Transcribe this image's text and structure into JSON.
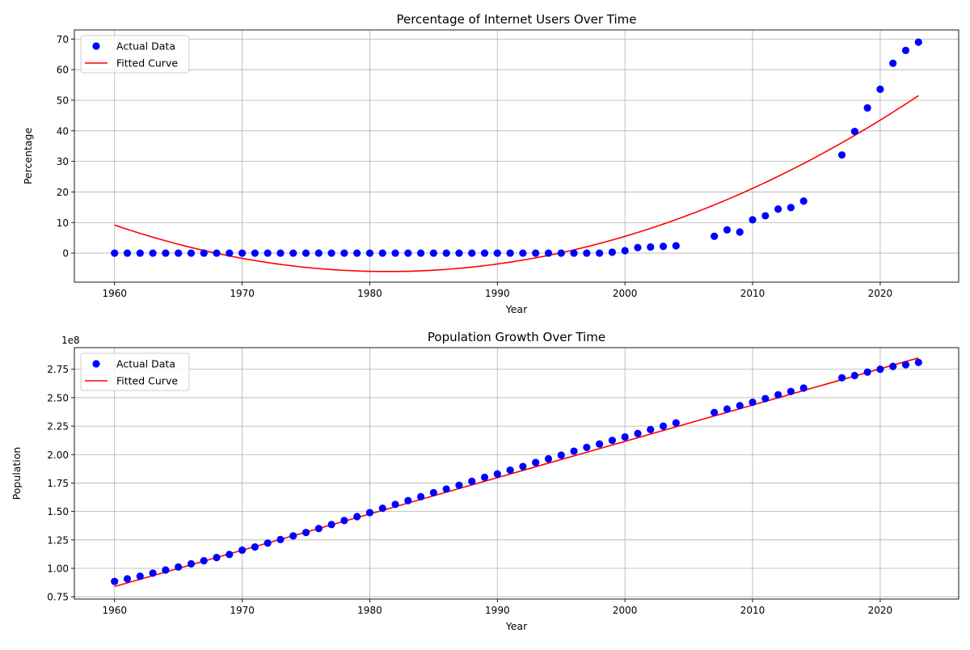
{
  "chart_data": [
    {
      "type": "scatter",
      "title": "Percentage of Internet Users Over Time",
      "xlabel": "Year",
      "ylabel": "Percentage",
      "xlim": [
        1956.85,
        2026.15
      ],
      "ylim": [
        -9.5,
        73
      ],
      "xticks": [
        1960,
        1970,
        1980,
        1990,
        2000,
        2010,
        2020
      ],
      "yticks": [
        0,
        10,
        20,
        30,
        40,
        50,
        60,
        70
      ],
      "grid": true,
      "legend_position": "top-left",
      "series": [
        {
          "name": "Actual Data",
          "kind": "scatter",
          "color": "#0000ff",
          "x": [
            1960,
            1961,
            1962,
            1963,
            1964,
            1965,
            1966,
            1967,
            1968,
            1969,
            1970,
            1971,
            1972,
            1973,
            1974,
            1975,
            1976,
            1977,
            1978,
            1979,
            1980,
            1981,
            1982,
            1983,
            1984,
            1985,
            1986,
            1987,
            1988,
            1989,
            1990,
            1991,
            1992,
            1993,
            1994,
            1995,
            1996,
            1997,
            1998,
            1999,
            2000,
            2001,
            2002,
            2003,
            2004,
            2007,
            2008,
            2009,
            2010,
            2011,
            2012,
            2013,
            2014,
            2017,
            2018,
            2019,
            2020,
            2021,
            2022,
            2023
          ],
          "y": [
            0,
            0,
            0,
            0,
            0,
            0,
            0,
            0,
            0,
            0,
            0,
            0,
            0,
            0,
            0,
            0,
            0,
            0,
            0,
            0,
            0,
            0,
            0,
            0,
            0,
            0,
            0,
            0,
            0,
            0,
            0,
            0,
            0,
            0,
            0,
            0,
            0,
            0,
            0,
            0.3,
            0.8,
            1.8,
            2.0,
            2.2,
            2.4,
            5.5,
            7.6,
            6.9,
            10.9,
            12.2,
            14.4,
            14.9,
            17.0,
            32.1,
            39.8,
            47.5,
            53.6,
            62.1,
            66.3,
            69.0
          ]
        },
        {
          "name": "Fitted Curve",
          "kind": "line",
          "color": "#ff0000",
          "fit": "quadratic",
          "x": [
            1960,
            1965,
            1970,
            1975,
            1980,
            1981.5,
            1985,
            1990,
            1995,
            2000,
            2005,
            2010,
            2015,
            2020,
            2023
          ],
          "y": [
            9.6,
            2.6,
            -2.1,
            -4.9,
            -5.9,
            -5.95,
            -5.3,
            -3.4,
            0.3,
            5.5,
            12.5,
            21.1,
            31.0,
            43.5,
            51.8
          ]
        }
      ]
    },
    {
      "type": "scatter",
      "title": "Population Growth Over Time",
      "xlabel": "Year",
      "ylabel": "Population",
      "offset_text": "1e8",
      "xlim": [
        1956.85,
        2026.15
      ],
      "ylim": [
        0.73,
        2.94
      ],
      "y_units_scale": 100000000,
      "xticks": [
        1960,
        1970,
        1980,
        1990,
        2000,
        2010,
        2020
      ],
      "yticks": [
        0.75,
        1.0,
        1.25,
        1.5,
        1.75,
        2.0,
        2.25,
        2.5,
        2.75
      ],
      "ytick_labels": [
        "0.75",
        "1.00",
        "1.25",
        "1.50",
        "1.75",
        "2.00",
        "2.25",
        "2.50",
        "2.75"
      ],
      "grid": true,
      "legend_position": "top-left",
      "series": [
        {
          "name": "Actual Data",
          "kind": "scatter",
          "color": "#0000ff",
          "x": [
            1960,
            1961,
            1962,
            1963,
            1964,
            1965,
            1966,
            1967,
            1968,
            1969,
            1970,
            1971,
            1972,
            1973,
            1974,
            1975,
            1976,
            1977,
            1978,
            1979,
            1980,
            1981,
            1982,
            1983,
            1984,
            1985,
            1986,
            1987,
            1988,
            1989,
            1990,
            1991,
            1992,
            1993,
            1994,
            1995,
            1996,
            1997,
            1998,
            1999,
            2000,
            2001,
            2002,
            2003,
            2004,
            2007,
            2008,
            2009,
            2010,
            2011,
            2012,
            2013,
            2014,
            2017,
            2018,
            2019,
            2020,
            2021,
            2022,
            2023
          ],
          "y": [
            0.885,
            0.908,
            0.931,
            0.958,
            0.985,
            1.012,
            1.04,
            1.067,
            1.095,
            1.122,
            1.16,
            1.188,
            1.222,
            1.253,
            1.285,
            1.315,
            1.35,
            1.385,
            1.42,
            1.455,
            1.49,
            1.528,
            1.562,
            1.595,
            1.63,
            1.665,
            1.697,
            1.73,
            1.765,
            1.8,
            1.83,
            1.863,
            1.895,
            1.93,
            1.963,
            1.995,
            2.03,
            2.063,
            2.093,
            2.125,
            2.155,
            2.185,
            2.22,
            2.25,
            2.278,
            2.37,
            2.4,
            2.43,
            2.46,
            2.492,
            2.525,
            2.555,
            2.585,
            2.675,
            2.695,
            2.725,
            2.75,
            2.775,
            2.79,
            2.81
          ]
        },
        {
          "name": "Fitted Curve",
          "kind": "line",
          "color": "#ff0000",
          "fit": "linear",
          "x": [
            1960,
            2023
          ],
          "y": [
            0.84,
            2.85
          ]
        }
      ]
    }
  ]
}
